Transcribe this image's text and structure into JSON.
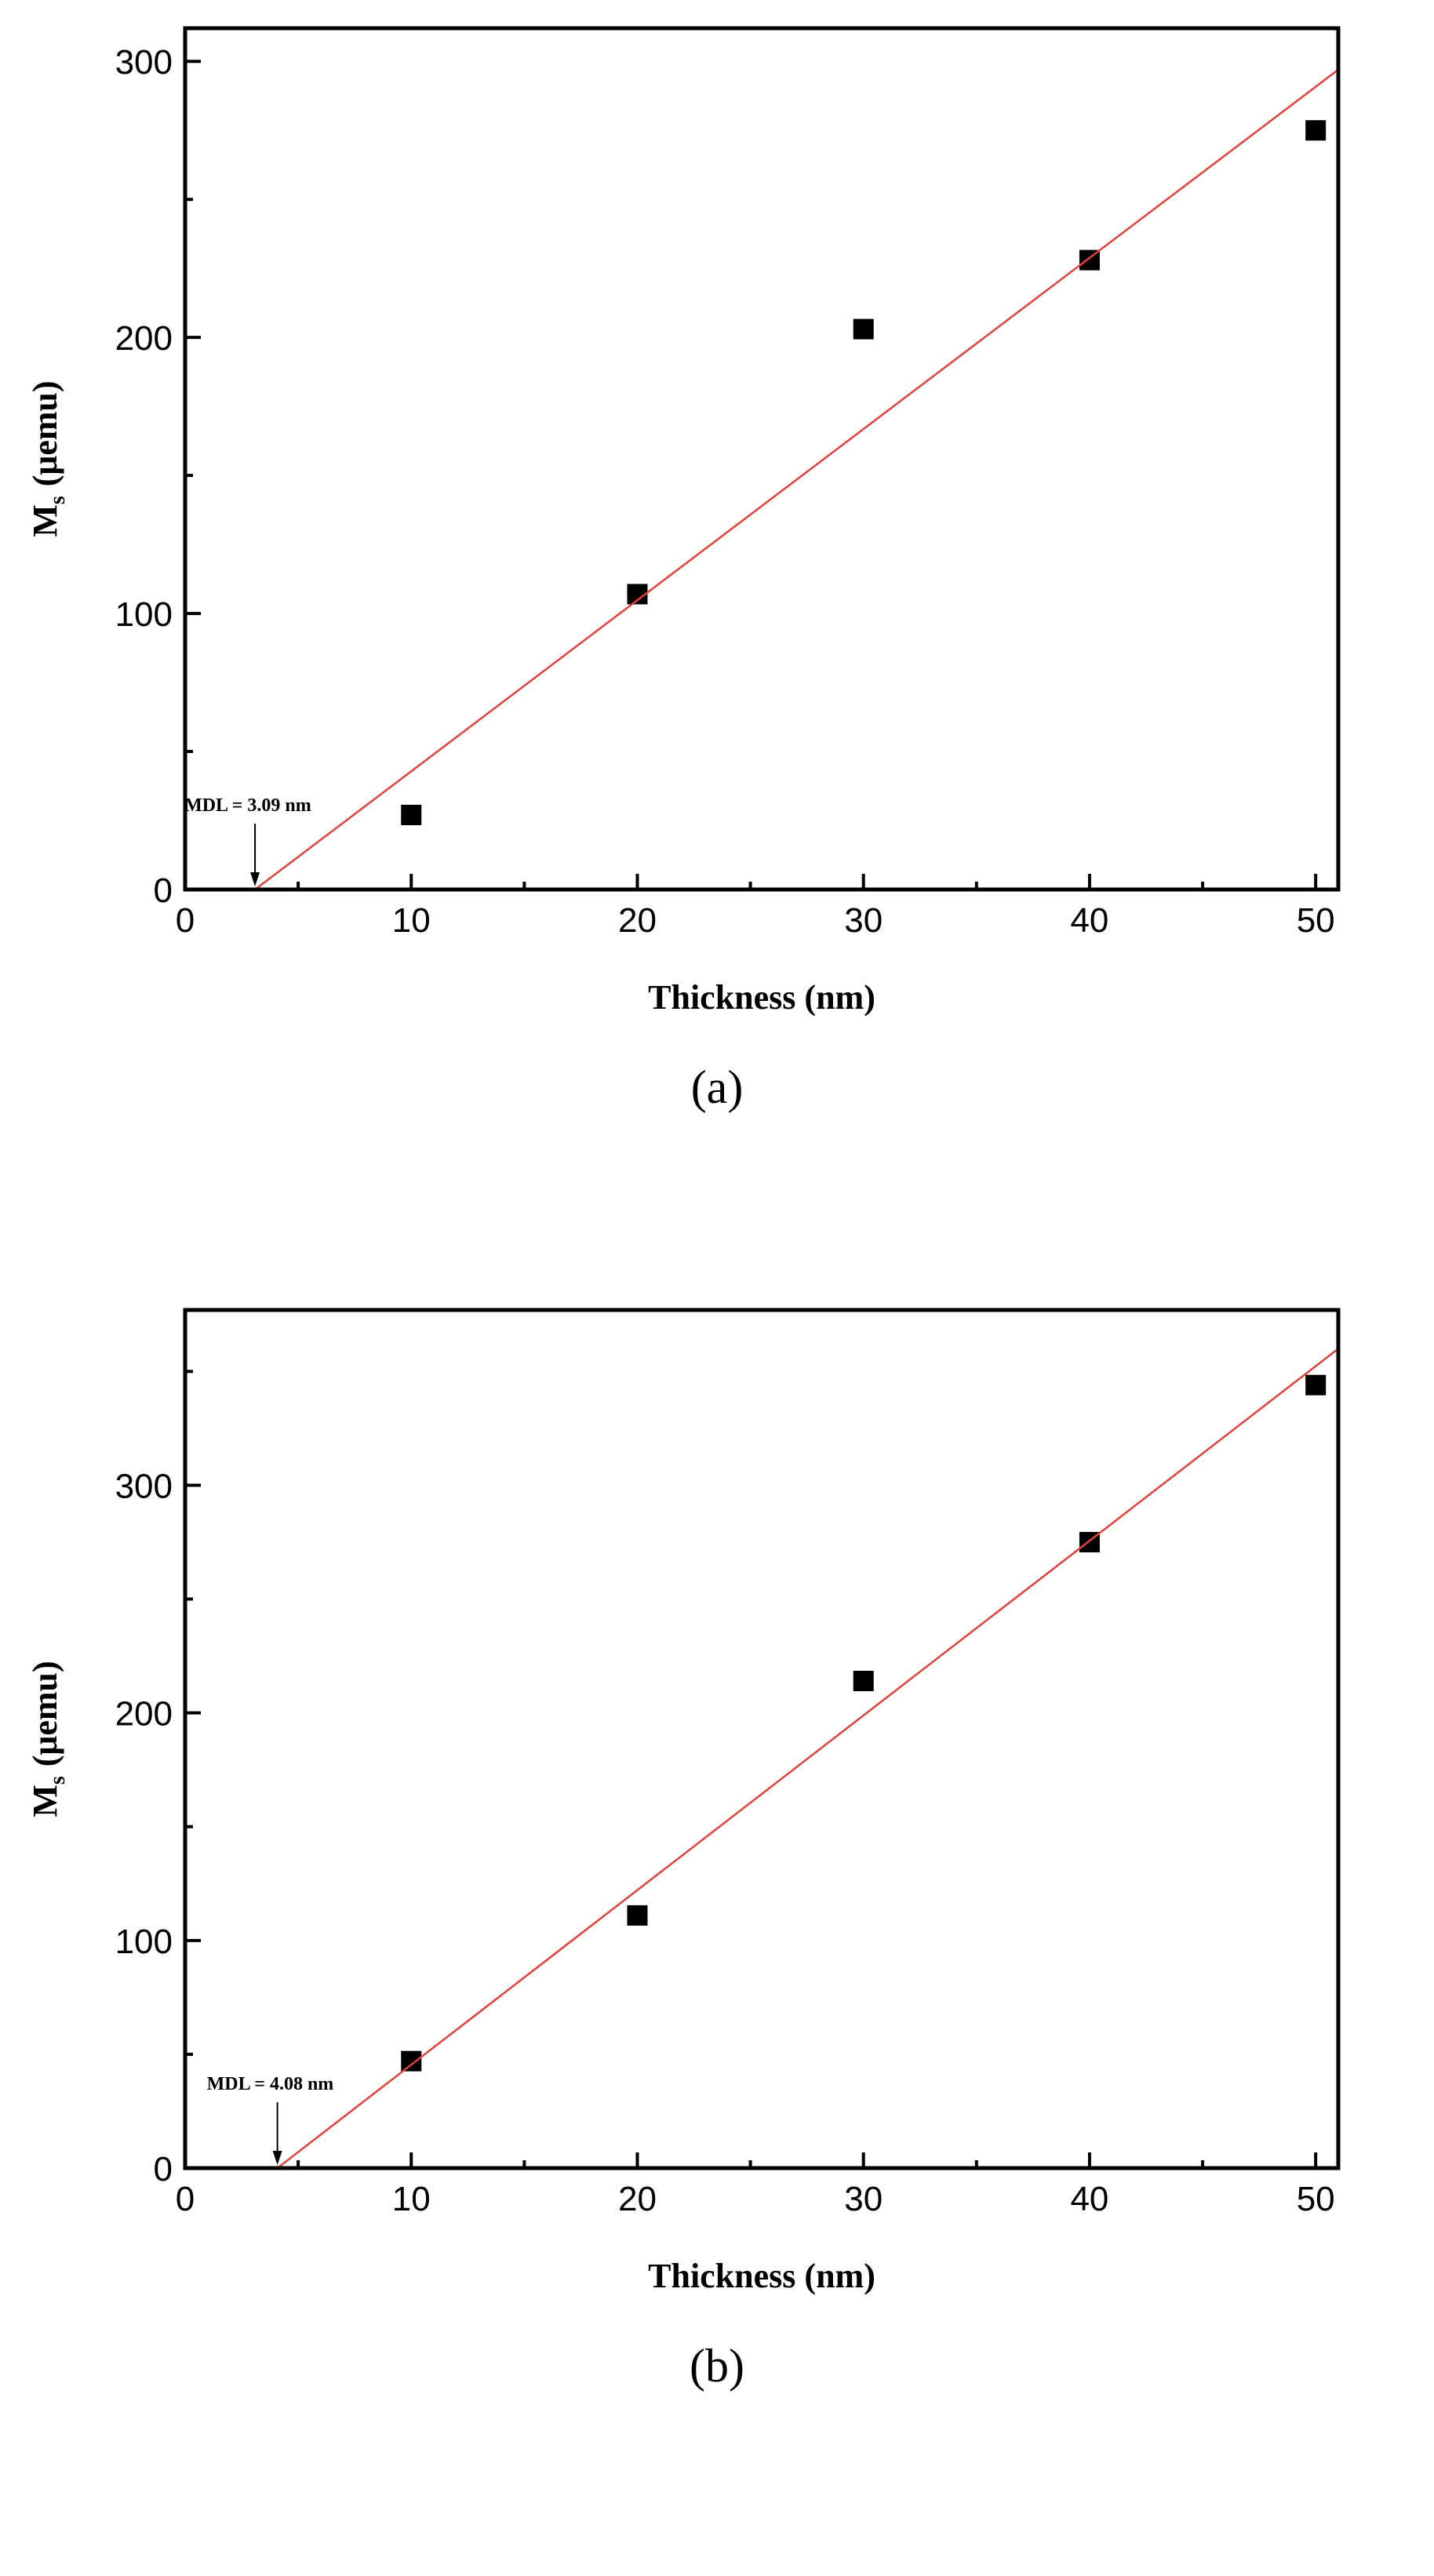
{
  "chart_data": [
    {
      "type": "scatter",
      "caption": "(a)",
      "x_label": "Thickness (nm)",
      "y_label": "M",
      "y_label_sub": "s",
      "y_label_unit": "(μemu)",
      "annotation": "MDL = 3.09 nm",
      "xlim": [
        0,
        51
      ],
      "ylim": [
        0,
        312
      ],
      "xticks": [
        0,
        10,
        20,
        30,
        40,
        50
      ],
      "yticks": [
        0,
        100,
        200,
        300
      ],
      "xticks_minor": [
        5,
        15,
        25,
        35,
        45
      ],
      "yticks_minor": [
        50,
        150,
        250
      ],
      "series": [
        {
          "mode": "markers",
          "color": "#000000",
          "x": [
            10,
            20,
            30,
            40,
            50
          ],
          "values": [
            27,
            107,
            203,
            228,
            275
          ]
        },
        {
          "mode": "line",
          "color": "#e0413a",
          "x": [
            3.09,
            51
          ],
          "values": [
            0,
            297
          ]
        }
      ]
    },
    {
      "type": "scatter",
      "caption": "(b)",
      "x_label": "Thickness (nm)",
      "y_label": "M",
      "y_label_sub": "s",
      "y_label_unit": "(μemu)",
      "annotation": "MDL = 4.08 nm",
      "xlim": [
        0,
        51
      ],
      "ylim": [
        0,
        377
      ],
      "xticks": [
        0,
        10,
        20,
        30,
        40,
        50
      ],
      "yticks": [
        0,
        100,
        200,
        300
      ],
      "xticks_minor": [
        5,
        15,
        25,
        35,
        45
      ],
      "yticks_minor": [
        50,
        150,
        250,
        350
      ],
      "series": [
        {
          "mode": "markers",
          "color": "#000000",
          "x": [
            10,
            20,
            30,
            40,
            50
          ],
          "values": [
            47,
            111,
            214,
            275,
            344
          ]
        },
        {
          "mode": "line",
          "color": "#e0413a",
          "x": [
            4.08,
            51
          ],
          "values": [
            0,
            360
          ]
        }
      ]
    }
  ]
}
